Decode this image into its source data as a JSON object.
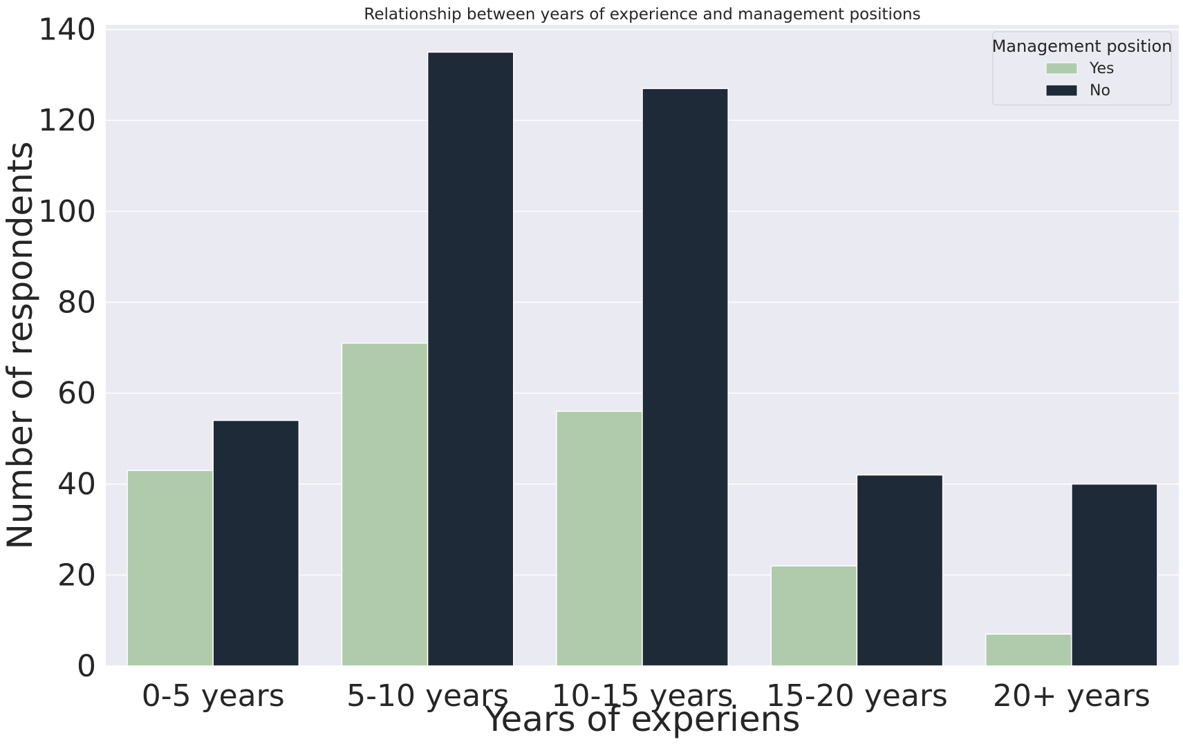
{
  "chart_data": {
    "type": "bar",
    "title": "Relationship between years of experience and management positions",
    "xlabel": "Years of experiens",
    "ylabel": "Number of respondents",
    "categories": [
      "0-5 years",
      "5-10 years",
      "10-15 years",
      "15-20 years",
      "20+ years"
    ],
    "series": [
      {
        "name": "Yes",
        "color": "#afcbab",
        "values": [
          43,
          71,
          56,
          22,
          7
        ]
      },
      {
        "name": "No",
        "color": "#1f2a38",
        "values": [
          54,
          135,
          127,
          42,
          40
        ]
      }
    ],
    "ylim": [
      0,
      141
    ],
    "yticks": [
      0,
      20,
      40,
      60,
      80,
      100,
      120,
      140
    ],
    "legend": {
      "title": "Management position",
      "placement": "top-right"
    },
    "grid": true,
    "plot_background": "#eaeaf2",
    "grid_color": "#ffffff"
  }
}
